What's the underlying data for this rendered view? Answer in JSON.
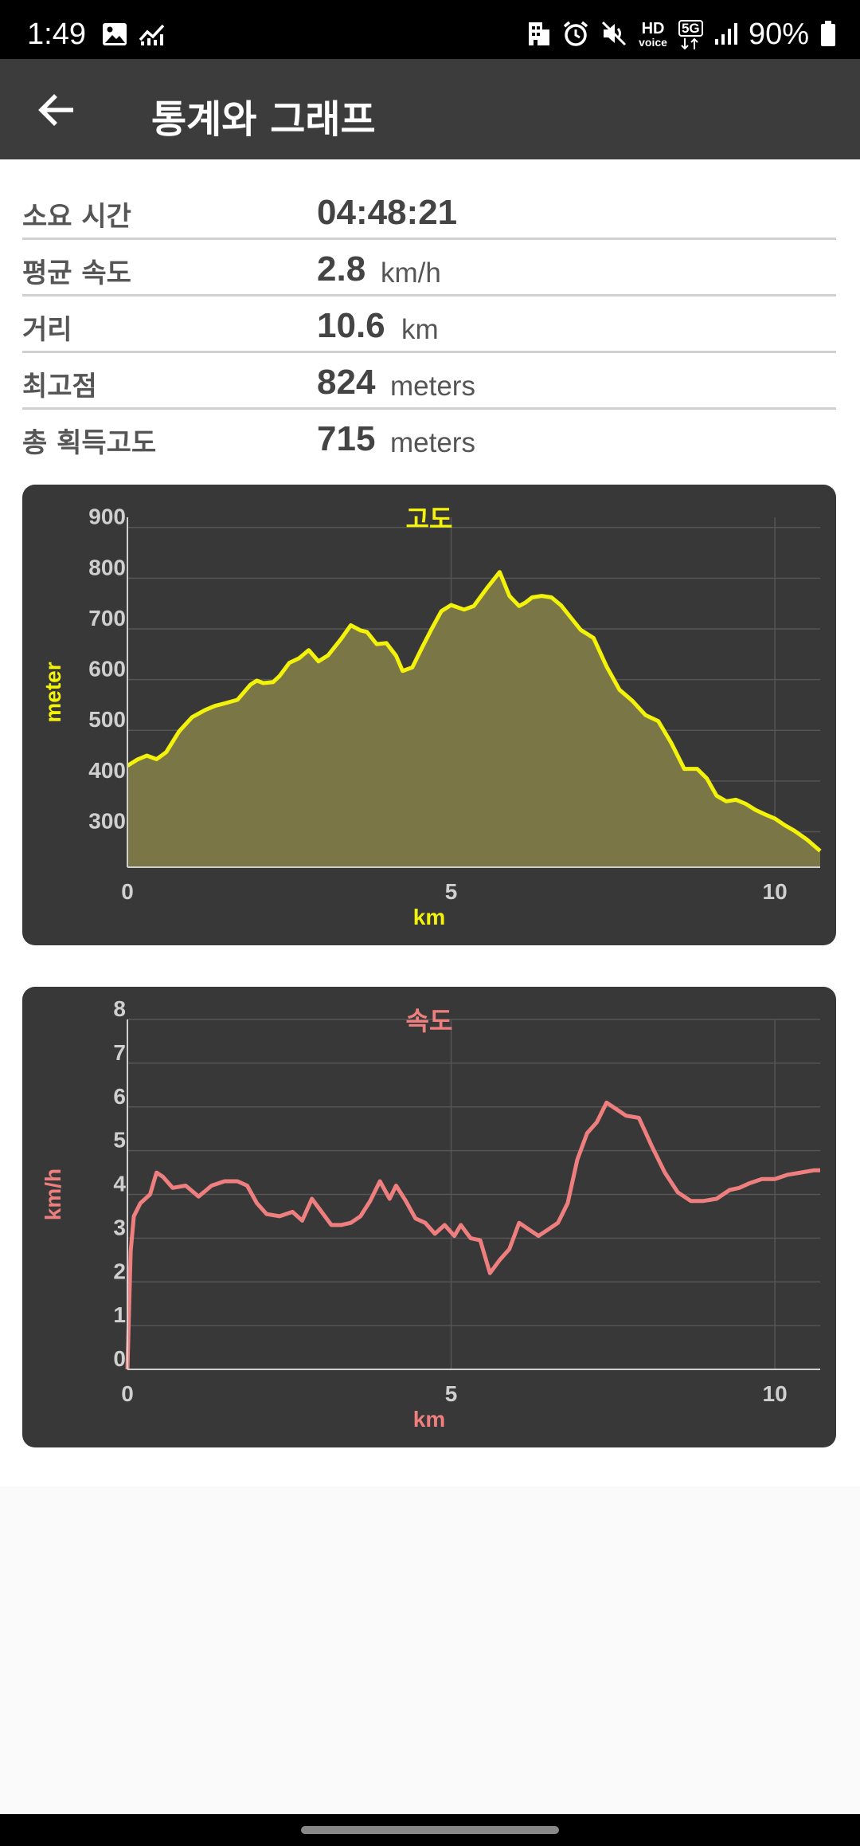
{
  "status_bar": {
    "time": "1:49",
    "battery": "90%",
    "hd_voice_line1": "HD",
    "hd_voice_line2": "voice",
    "network": "5G",
    "icons": [
      "image-icon",
      "activity-icon",
      "building-icon",
      "alarm-icon",
      "mute-icon",
      "hd-voice-icon",
      "5g-icon",
      "signal-icon",
      "battery-icon"
    ]
  },
  "app_bar": {
    "title": "통계와 그래프",
    "back_icon": "arrow-left-icon"
  },
  "stats": [
    {
      "label": "소요 시간",
      "value": "04:48:21",
      "unit": ""
    },
    {
      "label": "평균 속도",
      "value": "2.8",
      "unit": "km/h"
    },
    {
      "label": "거리",
      "value": "10.6",
      "unit": "km"
    },
    {
      "label": "최고점",
      "value": "824",
      "unit": "meters"
    },
    {
      "label": "총 획득고도",
      "value": "715",
      "unit": "meters"
    }
  ],
  "colors": {
    "elevation_line": "#f2f20a",
    "elevation_fill": "#7a7646",
    "speed_line": "#ef7f7f",
    "card_bg": "#383838"
  },
  "chart_data": [
    {
      "type": "area",
      "title": "고도",
      "xlabel": "km",
      "ylabel": "meter",
      "xlim": [
        0,
        10.7
      ],
      "ylim": [
        230,
        920
      ],
      "x_ticks": [
        0,
        5,
        10
      ],
      "y_ticks": [
        300,
        400,
        500,
        600,
        700,
        800,
        900
      ],
      "grid": true,
      "x": [
        0,
        0.15,
        0.3,
        0.45,
        0.6,
        0.8,
        1.0,
        1.2,
        1.35,
        1.5,
        1.7,
        1.9,
        2.0,
        2.1,
        2.25,
        2.35,
        2.5,
        2.65,
        2.8,
        2.95,
        3.1,
        3.3,
        3.45,
        3.6,
        3.7,
        3.85,
        4.0,
        4.15,
        4.25,
        4.4,
        4.55,
        4.7,
        4.85,
        5.0,
        5.2,
        5.35,
        5.55,
        5.75,
        5.9,
        6.05,
        6.15,
        6.25,
        6.4,
        6.55,
        6.7,
        6.85,
        7.0,
        7.2,
        7.4,
        7.6,
        7.8,
        8.0,
        8.2,
        8.4,
        8.6,
        8.8,
        8.95,
        9.1,
        9.25,
        9.4,
        9.55,
        9.7,
        9.85,
        10.0,
        10.15,
        10.3,
        10.5,
        10.7
      ],
      "values": [
        430,
        442,
        450,
        443,
        457,
        498,
        526,
        540,
        548,
        553,
        560,
        590,
        598,
        593,
        595,
        607,
        633,
        642,
        658,
        636,
        648,
        680,
        707,
        697,
        694,
        670,
        672,
        647,
        617,
        624,
        663,
        700,
        735,
        747,
        738,
        745,
        780,
        812,
        765,
        745,
        752,
        762,
        765,
        762,
        746,
        722,
        698,
        682,
        626,
        580,
        558,
        530,
        518,
        475,
        424,
        424,
        405,
        371,
        360,
        363,
        355,
        343,
        334,
        326,
        313,
        302,
        284,
        262
      ]
    },
    {
      "type": "line",
      "title": "속도",
      "xlabel": "km",
      "ylabel": "km/h",
      "xlim": [
        0,
        10.7
      ],
      "ylim": [
        0,
        8
      ],
      "x_ticks": [
        0,
        5,
        10
      ],
      "y_ticks": [
        0,
        1,
        2,
        3,
        4,
        5,
        6,
        7,
        8
      ],
      "grid": true,
      "x": [
        0,
        0.05,
        0.1,
        0.2,
        0.35,
        0.45,
        0.55,
        0.7,
        0.9,
        1.1,
        1.3,
        1.5,
        1.7,
        1.85,
        2.0,
        2.15,
        2.35,
        2.55,
        2.7,
        2.85,
        3.0,
        3.15,
        3.3,
        3.45,
        3.6,
        3.75,
        3.9,
        4.05,
        4.15,
        4.3,
        4.45,
        4.6,
        4.75,
        4.9,
        5.05,
        5.15,
        5.3,
        5.45,
        5.6,
        5.75,
        5.9,
        6.05,
        6.2,
        6.35,
        6.5,
        6.65,
        6.8,
        6.95,
        7.1,
        7.25,
        7.4,
        7.55,
        7.7,
        7.9,
        8.1,
        8.3,
        8.5,
        8.7,
        8.9,
        9.1,
        9.3,
        9.45,
        9.6,
        9.8,
        10.0,
        10.2,
        10.4,
        10.6,
        10.7
      ],
      "values": [
        0,
        2.7,
        3.5,
        3.8,
        4.0,
        4.5,
        4.4,
        4.15,
        4.2,
        3.95,
        4.2,
        4.3,
        4.3,
        4.2,
        3.8,
        3.55,
        3.5,
        3.6,
        3.4,
        3.9,
        3.6,
        3.3,
        3.3,
        3.35,
        3.5,
        3.85,
        4.3,
        3.9,
        4.2,
        3.85,
        3.45,
        3.35,
        3.1,
        3.3,
        3.05,
        3.3,
        3.0,
        2.95,
        2.2,
        2.5,
        2.75,
        3.35,
        3.2,
        3.05,
        3.2,
        3.35,
        3.8,
        4.8,
        5.4,
        5.65,
        6.1,
        5.95,
        5.8,
        5.75,
        5.1,
        4.5,
        4.05,
        3.85,
        3.85,
        3.9,
        4.1,
        4.15,
        4.25,
        4.35,
        4.35,
        4.45,
        4.5,
        4.55,
        4.55
      ]
    }
  ]
}
